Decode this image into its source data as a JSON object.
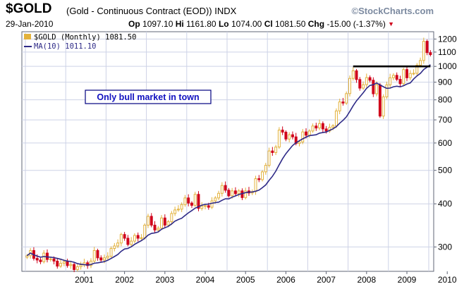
{
  "header": {
    "symbol": "$GOLD",
    "description": "(Gold - Continuous Contract (EOD))",
    "exchange": "INDX",
    "brand": "©StockCharts.com",
    "date": "29-Jan-2010",
    "open_label": "Op",
    "open_value": "1097.10",
    "high_label": "Hi",
    "high_value": "1161.80",
    "low_label": "Lo",
    "low_value": "1074.00",
    "close_label": "Cl",
    "close_value": "1081.50",
    "change_label": "Chg",
    "change_value": "-15.00 (-1.37%)"
  },
  "legend": {
    "price_label": "$GOLD (Monthly) 1081.50",
    "ma_label": "MA(10) 1011.10"
  },
  "colors": {
    "up_candle": "#e3b23c",
    "down_candle": "#d0021b",
    "ma_line": "#2e2a87",
    "resistance_line": "#000000",
    "grid": "#cdd2e6",
    "annotation_border": "#000080",
    "annotation_text": "#1010c0"
  },
  "chart_data": {
    "type": "candlestick",
    "interval": "monthly",
    "y_scale": "log",
    "ylim": [
      255,
      1260
    ],
    "y_ticks": [
      300,
      400,
      500,
      600,
      700,
      800,
      900,
      1000,
      1100,
      1200
    ],
    "x_ticks": [
      "2001",
      "2002",
      "2003",
      "2004",
      "2005",
      "2006",
      "2007",
      "2008",
      "2009",
      "2010"
    ],
    "grid": true,
    "legend_position": "top-left",
    "annotation": "Only bull market in town",
    "resistance_level": 1000,
    "resistance_range": [
      "2008-02",
      "2010-01"
    ],
    "monthly_close": [
      {
        "x": "2000-01",
        "v": 283
      },
      {
        "x": "2000-02",
        "v": 293
      },
      {
        "x": "2000-03",
        "v": 278
      },
      {
        "x": "2000-04",
        "v": 275
      },
      {
        "x": "2000-05",
        "v": 272
      },
      {
        "x": "2000-06",
        "v": 288
      },
      {
        "x": "2000-07",
        "v": 276
      },
      {
        "x": "2000-08",
        "v": 277
      },
      {
        "x": "2000-09",
        "v": 273
      },
      {
        "x": "2000-10",
        "v": 264
      },
      {
        "x": "2000-11",
        "v": 269
      },
      {
        "x": "2000-12",
        "v": 272
      },
      {
        "x": "2001-01",
        "v": 265
      },
      {
        "x": "2001-02",
        "v": 267
      },
      {
        "x": "2001-03",
        "v": 258
      },
      {
        "x": "2001-04",
        "v": 263
      },
      {
        "x": "2001-05",
        "v": 266
      },
      {
        "x": "2001-06",
        "v": 270
      },
      {
        "x": "2001-07",
        "v": 265
      },
      {
        "x": "2001-08",
        "v": 273
      },
      {
        "x": "2001-09",
        "v": 293
      },
      {
        "x": "2001-10",
        "v": 279
      },
      {
        "x": "2001-11",
        "v": 275
      },
      {
        "x": "2001-12",
        "v": 279
      },
      {
        "x": "2002-01",
        "v": 282
      },
      {
        "x": "2002-02",
        "v": 297
      },
      {
        "x": "2002-03",
        "v": 302
      },
      {
        "x": "2002-04",
        "v": 308
      },
      {
        "x": "2002-05",
        "v": 326
      },
      {
        "x": "2002-06",
        "v": 318
      },
      {
        "x": "2002-07",
        "v": 305
      },
      {
        "x": "2002-08",
        "v": 312
      },
      {
        "x": "2002-09",
        "v": 324
      },
      {
        "x": "2002-10",
        "v": 318
      },
      {
        "x": "2002-11",
        "v": 319
      },
      {
        "x": "2002-12",
        "v": 347
      },
      {
        "x": "2003-01",
        "v": 368
      },
      {
        "x": "2003-02",
        "v": 347
      },
      {
        "x": "2003-03",
        "v": 336
      },
      {
        "x": "2003-04",
        "v": 340
      },
      {
        "x": "2003-05",
        "v": 364
      },
      {
        "x": "2003-06",
        "v": 347
      },
      {
        "x": "2003-07",
        "v": 355
      },
      {
        "x": "2003-08",
        "v": 375
      },
      {
        "x": "2003-09",
        "v": 384
      },
      {
        "x": "2003-10",
        "v": 386
      },
      {
        "x": "2003-11",
        "v": 398
      },
      {
        "x": "2003-12",
        "v": 416
      },
      {
        "x": "2004-01",
        "v": 402
      },
      {
        "x": "2004-02",
        "v": 396
      },
      {
        "x": "2004-03",
        "v": 426
      },
      {
        "x": "2004-04",
        "v": 388
      },
      {
        "x": "2004-05",
        "v": 394
      },
      {
        "x": "2004-06",
        "v": 395
      },
      {
        "x": "2004-07",
        "v": 391
      },
      {
        "x": "2004-08",
        "v": 408
      },
      {
        "x": "2004-09",
        "v": 416
      },
      {
        "x": "2004-10",
        "v": 429
      },
      {
        "x": "2004-11",
        "v": 452
      },
      {
        "x": "2004-12",
        "v": 438
      },
      {
        "x": "2005-01",
        "v": 422
      },
      {
        "x": "2005-02",
        "v": 436
      },
      {
        "x": "2005-03",
        "v": 428
      },
      {
        "x": "2005-04",
        "v": 436
      },
      {
        "x": "2005-05",
        "v": 417
      },
      {
        "x": "2005-06",
        "v": 436
      },
      {
        "x": "2005-07",
        "v": 430
      },
      {
        "x": "2005-08",
        "v": 434
      },
      {
        "x": "2005-09",
        "v": 473
      },
      {
        "x": "2005-10",
        "v": 470
      },
      {
        "x": "2005-11",
        "v": 495
      },
      {
        "x": "2005-12",
        "v": 517
      },
      {
        "x": "2006-01",
        "v": 569
      },
      {
        "x": "2006-02",
        "v": 563
      },
      {
        "x": "2006-03",
        "v": 584
      },
      {
        "x": "2006-04",
        "v": 654
      },
      {
        "x": "2006-05",
        "v": 645
      },
      {
        "x": "2006-06",
        "v": 616
      },
      {
        "x": "2006-07",
        "v": 634
      },
      {
        "x": "2006-08",
        "v": 625
      },
      {
        "x": "2006-09",
        "v": 598
      },
      {
        "x": "2006-10",
        "v": 604
      },
      {
        "x": "2006-11",
        "v": 646
      },
      {
        "x": "2006-12",
        "v": 632
      },
      {
        "x": "2007-01",
        "v": 650
      },
      {
        "x": "2007-02",
        "v": 672
      },
      {
        "x": "2007-03",
        "v": 663
      },
      {
        "x": "2007-04",
        "v": 683
      },
      {
        "x": "2007-05",
        "v": 659
      },
      {
        "x": "2007-06",
        "v": 650
      },
      {
        "x": "2007-07",
        "v": 666
      },
      {
        "x": "2007-08",
        "v": 673
      },
      {
        "x": "2007-09",
        "v": 743
      },
      {
        "x": "2007-10",
        "v": 789
      },
      {
        "x": "2007-11",
        "v": 783
      },
      {
        "x": "2007-12",
        "v": 834
      },
      {
        "x": "2008-01",
        "v": 923
      },
      {
        "x": "2008-02",
        "v": 971
      },
      {
        "x": "2008-03",
        "v": 916
      },
      {
        "x": "2008-04",
        "v": 865
      },
      {
        "x": "2008-05",
        "v": 885
      },
      {
        "x": "2008-06",
        "v": 928
      },
      {
        "x": "2008-07",
        "v": 912
      },
      {
        "x": "2008-08",
        "v": 833
      },
      {
        "x": "2008-09",
        "v": 884
      },
      {
        "x": "2008-10",
        "v": 718
      },
      {
        "x": "2008-11",
        "v": 816
      },
      {
        "x": "2008-12",
        "v": 884
      },
      {
        "x": "2009-01",
        "v": 927
      },
      {
        "x": "2009-02",
        "v": 942
      },
      {
        "x": "2009-03",
        "v": 917
      },
      {
        "x": "2009-04",
        "v": 891
      },
      {
        "x": "2009-05",
        "v": 979
      },
      {
        "x": "2009-06",
        "v": 927
      },
      {
        "x": "2009-07",
        "v": 954
      },
      {
        "x": "2009-08",
        "v": 955
      },
      {
        "x": "2009-09",
        "v": 1008
      },
      {
        "x": "2009-10",
        "v": 1040
      },
      {
        "x": "2009-11",
        "v": 1182
      },
      {
        "x": "2009-12",
        "v": 1096
      },
      {
        "x": "2010-01",
        "v": 1081.5
      }
    ],
    "series": [
      {
        "name": "$GOLD (Monthly)",
        "kind": "candlestick"
      },
      {
        "name": "MA(10)",
        "kind": "line"
      }
    ]
  }
}
